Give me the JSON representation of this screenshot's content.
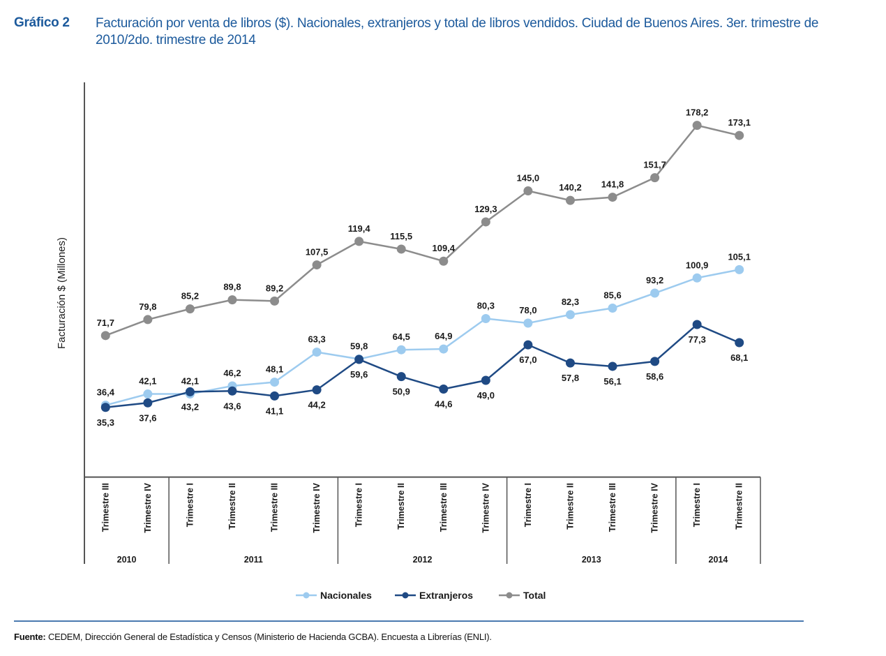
{
  "header": {
    "figure_label": "Gráfico 2",
    "title": "Facturación por venta de libros ($). Nacionales, extranjeros y total de libros vendidos. Ciudad de Buenos Aires. 3er. trimestre de 2010/2do. trimestre de 2014"
  },
  "footer": {
    "source_label": "Fuente:",
    "source_text": " CEDEM, Dirección General de Estadística y Censos (Ministerio de Hacienda GCBA). Encuesta a Librerías (ENLI)."
  },
  "chart_data": {
    "type": "line",
    "title": "Facturación por venta de libros ($). Nacionales, extranjeros y total de libros vendidos. Ciudad de Buenos Aires. 3er. trimestre de 2010/2do. trimestre de 2014",
    "xlabel": "",
    "ylabel": "Facturación $ (Millones)",
    "ylim": [
      0,
      200
    ],
    "grid": false,
    "legend_position": "bottom",
    "categories": [
      "Trimestre III",
      "Trimestre IV",
      "Trimestre I",
      "Trimestre II",
      "Trimestre III",
      "Trimestre IV",
      "Trimestre I",
      "Trimestre II",
      "Trimestre III",
      "Trimestre IV",
      "Trimestre I",
      "Trimestre II",
      "Trimestre III",
      "Trimestre IV",
      "Trimestre I",
      "Trimestre II"
    ],
    "year_groups": [
      {
        "label": "2010",
        "count": 2
      },
      {
        "label": "2011",
        "count": 4
      },
      {
        "label": "2012",
        "count": 4
      },
      {
        "label": "2013",
        "count": 4
      },
      {
        "label": "2014",
        "count": 2
      }
    ],
    "series": [
      {
        "name": "Nacionales",
        "color": "#9dcbef",
        "label_position": "above",
        "values": [
          36.4,
          42.1,
          42.1,
          46.2,
          48.1,
          63.3,
          59.8,
          64.5,
          64.9,
          80.3,
          78.0,
          82.3,
          85.6,
          93.2,
          100.9,
          105.1
        ],
        "labels": [
          "36,4",
          "42,1",
          "42,1",
          "46,2",
          "48,1",
          "63,3",
          "59,8",
          "64,5",
          "64,9",
          "80,3",
          "78,0",
          "82,3",
          "85,6",
          "93,2",
          "100,9",
          "105,1"
        ]
      },
      {
        "name": "Extranjeros",
        "color": "#1f4a84",
        "label_position": "below",
        "values": [
          35.3,
          37.6,
          43.2,
          43.6,
          41.1,
          44.2,
          59.6,
          50.9,
          44.6,
          49.0,
          67.0,
          57.8,
          56.1,
          58.6,
          77.3,
          68.1
        ],
        "labels": [
          "35,3",
          "37,6",
          "43,2",
          "43,6",
          "41,1",
          "44,2",
          "59,6",
          "50,9",
          "44,6",
          "49,0",
          "67,0",
          "57,8",
          "56,1",
          "58,6",
          "77,3",
          "68,1"
        ]
      },
      {
        "name": "Total",
        "color": "#8c8c8c",
        "label_position": "above",
        "values": [
          71.7,
          79.8,
          85.2,
          89.8,
          89.2,
          107.5,
          119.4,
          115.5,
          109.4,
          129.3,
          145.0,
          140.2,
          141.8,
          151.7,
          178.2,
          173.1
        ],
        "labels": [
          "71,7",
          "79,8",
          "85,2",
          "89,8",
          "89,2",
          "107,5",
          "119,4",
          "115,5",
          "109,4",
          "129,3",
          "145,0",
          "140,2",
          "141,8",
          "151,7",
          "178,2",
          "173,1"
        ]
      }
    ]
  }
}
